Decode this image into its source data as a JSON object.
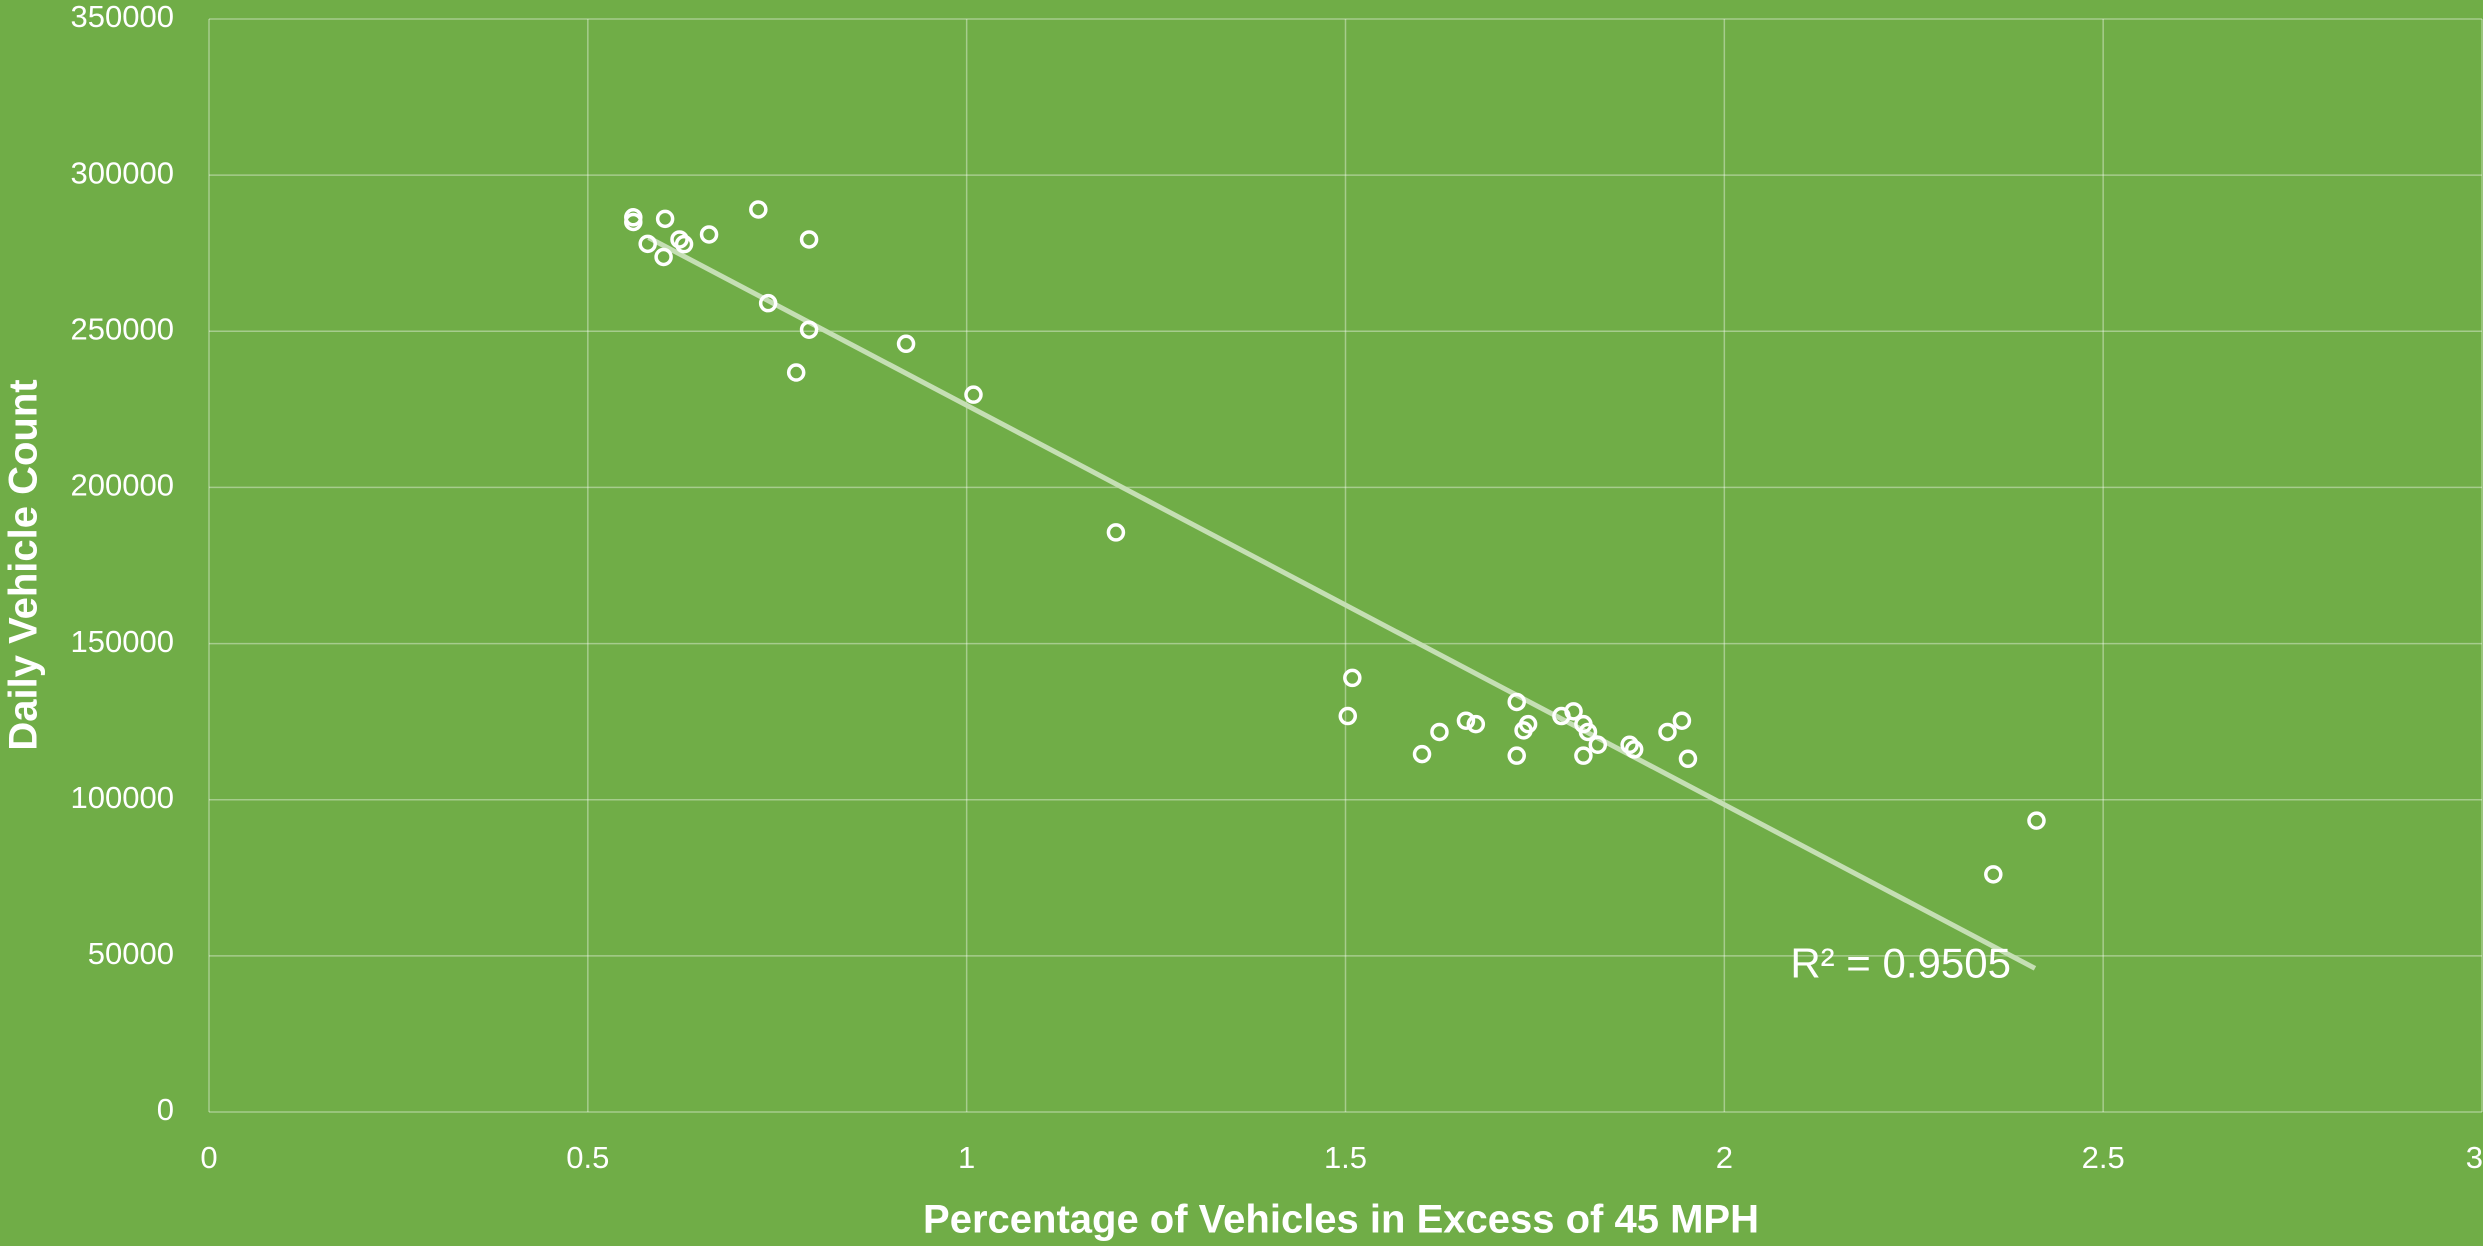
{
  "chart_data": {
    "type": "scatter",
    "x_label": "Percentage of Vehicles in Excess of 45 MPH",
    "y_label": "Daily Vehicle Count",
    "annotation": "R² = 0.9505",
    "xlim": [
      0,
      3
    ],
    "ylim": [
      0,
      350000
    ],
    "xticks": [
      0,
      0.5,
      1,
      1.5,
      2,
      2.5,
      3
    ],
    "yticks": [
      0,
      50000,
      100000,
      150000,
      200000,
      250000,
      300000,
      350000
    ],
    "grid": true,
    "series": [
      {
        "color": "#ffffff",
        "x": [
          0.56,
          0.56,
          0.579,
          0.602,
          0.6,
          0.621,
          0.627,
          0.66,
          0.725,
          0.738,
          0.792,
          0.792,
          0.775,
          0.92,
          1.009,
          1.197,
          1.503,
          1.509,
          1.601,
          1.624,
          1.659,
          1.672,
          1.726,
          1.726,
          1.735,
          1.741,
          1.785,
          1.801,
          1.814,
          1.82,
          1.814,
          1.833,
          1.875,
          1.881,
          1.925,
          1.944,
          1.952,
          2.355,
          2.412
        ],
        "values": [
          286500,
          285000,
          278000,
          286000,
          273800,
          279400,
          277900,
          281000,
          289000,
          259000,
          279400,
          250500,
          236800,
          246000,
          229700,
          185600,
          126800,
          139000,
          114600,
          121700,
          125300,
          124200,
          131300,
          114100,
          122200,
          124200,
          126800,
          128300,
          124200,
          121700,
          114100,
          117600,
          117600,
          116100,
          121700,
          125300,
          113100,
          76100,
          93300
        ]
      }
    ],
    "trendline": {
      "color": "#c5dfb4",
      "x": [
        0.58,
        2.41
      ],
      "values": [
        280000,
        46000
      ]
    }
  }
}
